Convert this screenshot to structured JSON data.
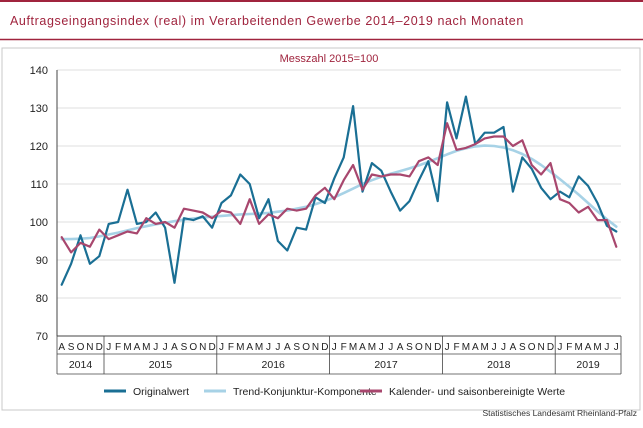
{
  "header": {
    "title": "Auftragseingangsindex (real) im Verarbeitenden Gewerbe 2014–2019 nach Monaten",
    "accent_color": "#a0243e"
  },
  "chart_data": {
    "type": "line",
    "subtitle": "Messzahl 2015=100",
    "ylim": [
      70,
      140
    ],
    "yticks": [
      70,
      80,
      90,
      100,
      110,
      120,
      130,
      140
    ],
    "grid": true,
    "legend_position": "bottom",
    "x": [
      "A",
      "S",
      "O",
      "N",
      "D",
      "J",
      "F",
      "M",
      "A",
      "M",
      "J",
      "J",
      "A",
      "S",
      "O",
      "N",
      "D",
      "J",
      "F",
      "M",
      "A",
      "M",
      "J",
      "J",
      "A",
      "S",
      "O",
      "N",
      "D",
      "J",
      "F",
      "M",
      "A",
      "M",
      "J",
      "J",
      "A",
      "S",
      "O",
      "N",
      "D",
      "J",
      "F",
      "M",
      "A",
      "M",
      "J",
      "J",
      "A",
      "S",
      "O",
      "N",
      "D",
      "J",
      "F",
      "M",
      "A",
      "M",
      "J",
      "J"
    ],
    "years": [
      {
        "label": "2014",
        "start": 0,
        "count": 5
      },
      {
        "label": "2015",
        "start": 5,
        "count": 12
      },
      {
        "label": "2016",
        "start": 17,
        "count": 12
      },
      {
        "label": "2017",
        "start": 29,
        "count": 12
      },
      {
        "label": "2018",
        "start": 41,
        "count": 12
      },
      {
        "label": "2019",
        "start": 53,
        "count": 7
      }
    ],
    "series": [
      {
        "name": "Originalwert",
        "color": "#1a6f94",
        "values": [
          83.5,
          89,
          96.5,
          89,
          91,
          99.5,
          100,
          108.5,
          99.5,
          100,
          102.5,
          98.5,
          84,
          101,
          100.5,
          101.5,
          98.5,
          105,
          107,
          112.5,
          110,
          101,
          106,
          95,
          92.5,
          98.5,
          98,
          106.5,
          105,
          111.5,
          117,
          130.5,
          108,
          115.5,
          113.5,
          108,
          103,
          105.5,
          111,
          116,
          105.5,
          131.5,
          122,
          133,
          120.5,
          123.5,
          123.5,
          125,
          108,
          117,
          114,
          109,
          106,
          108,
          106.5,
          112,
          109.5,
          105,
          99,
          97.5
        ]
      },
      {
        "name": "Trend-Konjunktur-Komponente",
        "color": "#a7d2e6",
        "values": [
          95.5,
          95.5,
          95.6,
          95.8,
          96.2,
          96.7,
          97.2,
          97.8,
          98.4,
          98.9,
          99.4,
          99.8,
          100.2,
          100.6,
          100.9,
          101.2,
          101.4,
          101.6,
          101.8,
          102,
          102.1,
          102.2,
          102.4,
          102.7,
          103,
          103.5,
          104,
          104.7,
          105.5,
          106.5,
          107.6,
          108.8,
          110,
          111,
          111.9,
          112.7,
          113.4,
          114.1,
          114.9,
          115.8,
          116.8,
          117.8,
          118.7,
          119.4,
          119.9,
          120.1,
          120,
          119.6,
          118.9,
          117.9,
          116.6,
          115,
          113.2,
          111.3,
          109.3,
          107.2,
          105,
          102.8,
          100.7,
          98.8
        ]
      },
      {
        "name": "Kalender- und saisonbereinigte Werte",
        "color": "#a8476e",
        "values": [
          96,
          92,
          94.5,
          93.5,
          98,
          95.5,
          96.5,
          97.5,
          97,
          101,
          99.5,
          100,
          98.5,
          103.5,
          103,
          102.5,
          101,
          103,
          102.5,
          99.5,
          106,
          99.5,
          102,
          101,
          103.5,
          103,
          103.5,
          107,
          109,
          106,
          111,
          115,
          108.5,
          112.5,
          112,
          112.5,
          112.5,
          112,
          116,
          117,
          115,
          126,
          119,
          119.5,
          120.5,
          122,
          122.5,
          122.5,
          120,
          121.5,
          115,
          112.5,
          115.5,
          106,
          105,
          102.5,
          104,
          100.5,
          100.5,
          93.5
        ]
      }
    ]
  },
  "footer": {
    "source": "Statistisches Landesamt Rheinland-Pfalz"
  }
}
